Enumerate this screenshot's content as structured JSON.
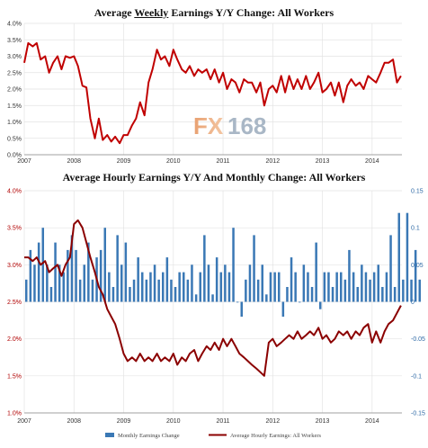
{
  "watermark": {
    "fx": "FX",
    "num": "168"
  },
  "chart_data": [
    {
      "type": "line",
      "title_parts": [
        "Average ",
        "Weekly",
        " Earnings Y/Y Change: All Workers"
      ],
      "xlabel": "",
      "ylabel": "",
      "x_ticks": [
        "2007",
        "2008",
        "2009",
        "2010",
        "2011",
        "2012",
        "2013",
        "2014"
      ],
      "y_ticks": [
        "0.0%",
        "0.5%",
        "1.0%",
        "1.5%",
        "2.0%",
        "2.5%",
        "3.0%",
        "3.5%",
        "4.0%"
      ],
      "ylim": [
        0,
        4
      ],
      "xlim": [
        2007.0,
        2014.6
      ],
      "grid": true,
      "series": [
        {
          "color": "#c00000",
          "points": [
            [
              2007.0,
              2.8
            ],
            [
              2007.08,
              3.4
            ],
            [
              2007.17,
              3.3
            ],
            [
              2007.25,
              3.4
            ],
            [
              2007.33,
              2.9
            ],
            [
              2007.42,
              3.0
            ],
            [
              2007.5,
              2.5
            ],
            [
              2007.58,
              2.8
            ],
            [
              2007.67,
              3.0
            ],
            [
              2007.75,
              2.6
            ],
            [
              2007.83,
              3.0
            ],
            [
              2007.92,
              2.95
            ],
            [
              2008.0,
              3.0
            ],
            [
              2008.08,
              2.7
            ],
            [
              2008.17,
              2.1
            ],
            [
              2008.25,
              2.05
            ],
            [
              2008.33,
              1.1
            ],
            [
              2008.42,
              0.5
            ],
            [
              2008.5,
              1.1
            ],
            [
              2008.58,
              0.45
            ],
            [
              2008.67,
              0.6
            ],
            [
              2008.75,
              0.4
            ],
            [
              2008.83,
              0.55
            ],
            [
              2008.92,
              0.35
            ],
            [
              2009.0,
              0.6
            ],
            [
              2009.08,
              0.6
            ],
            [
              2009.17,
              0.9
            ],
            [
              2009.25,
              1.1
            ],
            [
              2009.33,
              1.6
            ],
            [
              2009.42,
              1.2
            ],
            [
              2009.5,
              2.2
            ],
            [
              2009.58,
              2.6
            ],
            [
              2009.67,
              3.2
            ],
            [
              2009.75,
              2.9
            ],
            [
              2009.83,
              3.0
            ],
            [
              2009.92,
              2.7
            ],
            [
              2010.0,
              3.2
            ],
            [
              2010.08,
              2.9
            ],
            [
              2010.17,
              2.6
            ],
            [
              2010.25,
              2.5
            ],
            [
              2010.33,
              2.7
            ],
            [
              2010.42,
              2.4
            ],
            [
              2010.5,
              2.6
            ],
            [
              2010.58,
              2.5
            ],
            [
              2010.67,
              2.6
            ],
            [
              2010.75,
              2.3
            ],
            [
              2010.83,
              2.6
            ],
            [
              2010.92,
              2.2
            ],
            [
              2011.0,
              2.5
            ],
            [
              2011.08,
              2.0
            ],
            [
              2011.17,
              2.3
            ],
            [
              2011.25,
              2.2
            ],
            [
              2011.33,
              1.9
            ],
            [
              2011.42,
              2.3
            ],
            [
              2011.5,
              2.2
            ],
            [
              2011.58,
              2.2
            ],
            [
              2011.67,
              1.9
            ],
            [
              2011.75,
              2.2
            ],
            [
              2011.83,
              1.5
            ],
            [
              2011.92,
              2.0
            ],
            [
              2012.0,
              2.1
            ],
            [
              2012.08,
              1.9
            ],
            [
              2012.17,
              2.4
            ],
            [
              2012.25,
              1.9
            ],
            [
              2012.33,
              2.4
            ],
            [
              2012.42,
              2.0
            ],
            [
              2012.5,
              2.3
            ],
            [
              2012.58,
              2.0
            ],
            [
              2012.67,
              2.4
            ],
            [
              2012.75,
              2.0
            ],
            [
              2012.83,
              2.2
            ],
            [
              2012.92,
              2.5
            ],
            [
              2013.0,
              1.9
            ],
            [
              2013.08,
              2.0
            ],
            [
              2013.17,
              2.2
            ],
            [
              2013.25,
              1.8
            ],
            [
              2013.33,
              2.2
            ],
            [
              2013.42,
              1.6
            ],
            [
              2013.5,
              2.1
            ],
            [
              2013.58,
              2.3
            ],
            [
              2013.67,
              2.1
            ],
            [
              2013.75,
              2.2
            ],
            [
              2013.83,
              2.0
            ],
            [
              2013.92,
              2.4
            ],
            [
              2014.0,
              2.3
            ],
            [
              2014.08,
              2.2
            ],
            [
              2014.17,
              2.5
            ],
            [
              2014.25,
              2.8
            ],
            [
              2014.33,
              2.8
            ],
            [
              2014.42,
              2.9
            ],
            [
              2014.5,
              2.2
            ],
            [
              2014.58,
              2.4
            ]
          ]
        }
      ]
    },
    {
      "type": "bar+line",
      "title": "Average Hourly Earnings Y/Y And Monthly Change: All Workers",
      "xlabel": "",
      "x_ticks": [
        "2007",
        "2008",
        "2009",
        "2010",
        "2011",
        "2012",
        "2013",
        "2014"
      ],
      "y_left_ticks": [
        "1.0%",
        "1.5%",
        "2.0%",
        "2.5%",
        "3.0%",
        "3.5%",
        "4.0%"
      ],
      "y_right_ticks": [
        "-0.15",
        "-0.1",
        "-0.05",
        "0",
        "0.05",
        "0.1",
        "0.15"
      ],
      "ylim_left": [
        1.0,
        4.0
      ],
      "ylim_right": [
        -0.15,
        0.15
      ],
      "xlim": [
        2007.0,
        2014.6
      ],
      "grid": true,
      "legend": {
        "placement": "bottom",
        "entries": [
          "Monthly Earnings Change",
          "Average Hourly Earnings: All Workers"
        ]
      },
      "series": [
        {
          "name": "Monthly Earnings Change",
          "kind": "bar",
          "axis": "right",
          "color": "#3a78b5",
          "values": [
            0.03,
            0.07,
            0.05,
            0.08,
            0.1,
            0.05,
            0.02,
            0.08,
            0.05,
            0.04,
            0.07,
            0.09,
            0.07,
            0.03,
            0.05,
            0.08,
            0.03,
            0.06,
            0.07,
            0.1,
            0.04,
            0.02,
            0.09,
            0.05,
            0.08,
            0.02,
            0.03,
            0.06,
            0.04,
            0.03,
            0.04,
            0.05,
            0.03,
            0.04,
            0.06,
            0.03,
            0.02,
            0.04,
            0.04,
            0.03,
            0.05,
            0.01,
            0.04,
            0.09,
            0.05,
            0.01,
            0.06,
            0.04,
            0.05,
            0.04,
            0.1,
            0.0,
            -0.02,
            0.03,
            0.05,
            0.09,
            0.03,
            0.05,
            0.01,
            0.04,
            0.04,
            0.04,
            -0.02,
            0.02,
            0.06,
            0.04,
            0.0,
            0.05,
            0.04,
            0.02,
            0.08,
            -0.01,
            0.04,
            0.04,
            0.02,
            0.04,
            0.04,
            0.03,
            0.07,
            0.04,
            0.02,
            0.05,
            0.04,
            0.03,
            0.04,
            0.05,
            0.02,
            0.04,
            0.09,
            0.02,
            0.12,
            0.03,
            0.12,
            0.03,
            0.07,
            0.03
          ]
        },
        {
          "name": "Average Hourly Earnings: All Workers",
          "kind": "line",
          "axis": "left",
          "color": "#8b0000",
          "points": [
            [
              2007.0,
              3.1
            ],
            [
              2007.08,
              3.1
            ],
            [
              2007.17,
              3.05
            ],
            [
              2007.25,
              3.1
            ],
            [
              2007.33,
              3.0
            ],
            [
              2007.42,
              3.05
            ],
            [
              2007.5,
              2.9
            ],
            [
              2007.58,
              2.95
            ],
            [
              2007.67,
              3.0
            ],
            [
              2007.75,
              2.85
            ],
            [
              2007.83,
              3.0
            ],
            [
              2007.92,
              3.1
            ],
            [
              2008.0,
              3.55
            ],
            [
              2008.08,
              3.6
            ],
            [
              2008.17,
              3.5
            ],
            [
              2008.25,
              3.3
            ],
            [
              2008.33,
              3.1
            ],
            [
              2008.42,
              2.9
            ],
            [
              2008.5,
              2.7
            ],
            [
              2008.58,
              2.6
            ],
            [
              2008.67,
              2.4
            ],
            [
              2008.75,
              2.3
            ],
            [
              2008.83,
              2.2
            ],
            [
              2008.92,
              2.0
            ],
            [
              2009.0,
              1.8
            ],
            [
              2009.08,
              1.7
            ],
            [
              2009.17,
              1.75
            ],
            [
              2009.25,
              1.7
            ],
            [
              2009.33,
              1.8
            ],
            [
              2009.42,
              1.7
            ],
            [
              2009.5,
              1.75
            ],
            [
              2009.58,
              1.7
            ],
            [
              2009.67,
              1.8
            ],
            [
              2009.75,
              1.7
            ],
            [
              2009.83,
              1.75
            ],
            [
              2009.92,
              1.7
            ],
            [
              2010.0,
              1.8
            ],
            [
              2010.08,
              1.65
            ],
            [
              2010.17,
              1.75
            ],
            [
              2010.25,
              1.7
            ],
            [
              2010.33,
              1.8
            ],
            [
              2010.42,
              1.85
            ],
            [
              2010.5,
              1.7
            ],
            [
              2010.58,
              1.8
            ],
            [
              2010.67,
              1.9
            ],
            [
              2010.75,
              1.85
            ],
            [
              2010.83,
              1.95
            ],
            [
              2010.92,
              1.85
            ],
            [
              2011.0,
              2.0
            ],
            [
              2011.08,
              1.9
            ],
            [
              2011.17,
              2.0
            ],
            [
              2011.25,
              1.9
            ],
            [
              2011.33,
              1.8
            ],
            [
              2011.42,
              1.75
            ],
            [
              2011.5,
              1.7
            ],
            [
              2011.58,
              1.65
            ],
            [
              2011.67,
              1.6
            ],
            [
              2011.75,
              1.55
            ],
            [
              2011.83,
              1.5
            ],
            [
              2011.92,
              1.95
            ],
            [
              2012.0,
              2.0
            ],
            [
              2012.08,
              1.9
            ],
            [
              2012.17,
              1.95
            ],
            [
              2012.25,
              2.0
            ],
            [
              2012.33,
              2.05
            ],
            [
              2012.42,
              2.0
            ],
            [
              2012.5,
              2.1
            ],
            [
              2012.58,
              2.0
            ],
            [
              2012.67,
              2.05
            ],
            [
              2012.75,
              2.1
            ],
            [
              2012.83,
              2.05
            ],
            [
              2012.92,
              2.15
            ],
            [
              2013.0,
              2.0
            ],
            [
              2013.08,
              2.05
            ],
            [
              2013.17,
              1.95
            ],
            [
              2013.25,
              2.0
            ],
            [
              2013.33,
              2.1
            ],
            [
              2013.42,
              2.05
            ],
            [
              2013.5,
              2.1
            ],
            [
              2013.58,
              2.0
            ],
            [
              2013.67,
              2.1
            ],
            [
              2013.75,
              2.05
            ],
            [
              2013.83,
              2.15
            ],
            [
              2013.92,
              2.2
            ],
            [
              2014.0,
              1.95
            ],
            [
              2014.08,
              2.1
            ],
            [
              2014.17,
              1.95
            ],
            [
              2014.25,
              2.1
            ],
            [
              2014.33,
              2.2
            ],
            [
              2014.42,
              2.25
            ],
            [
              2014.5,
              2.35
            ],
            [
              2014.58,
              2.45
            ]
          ]
        }
      ]
    }
  ]
}
